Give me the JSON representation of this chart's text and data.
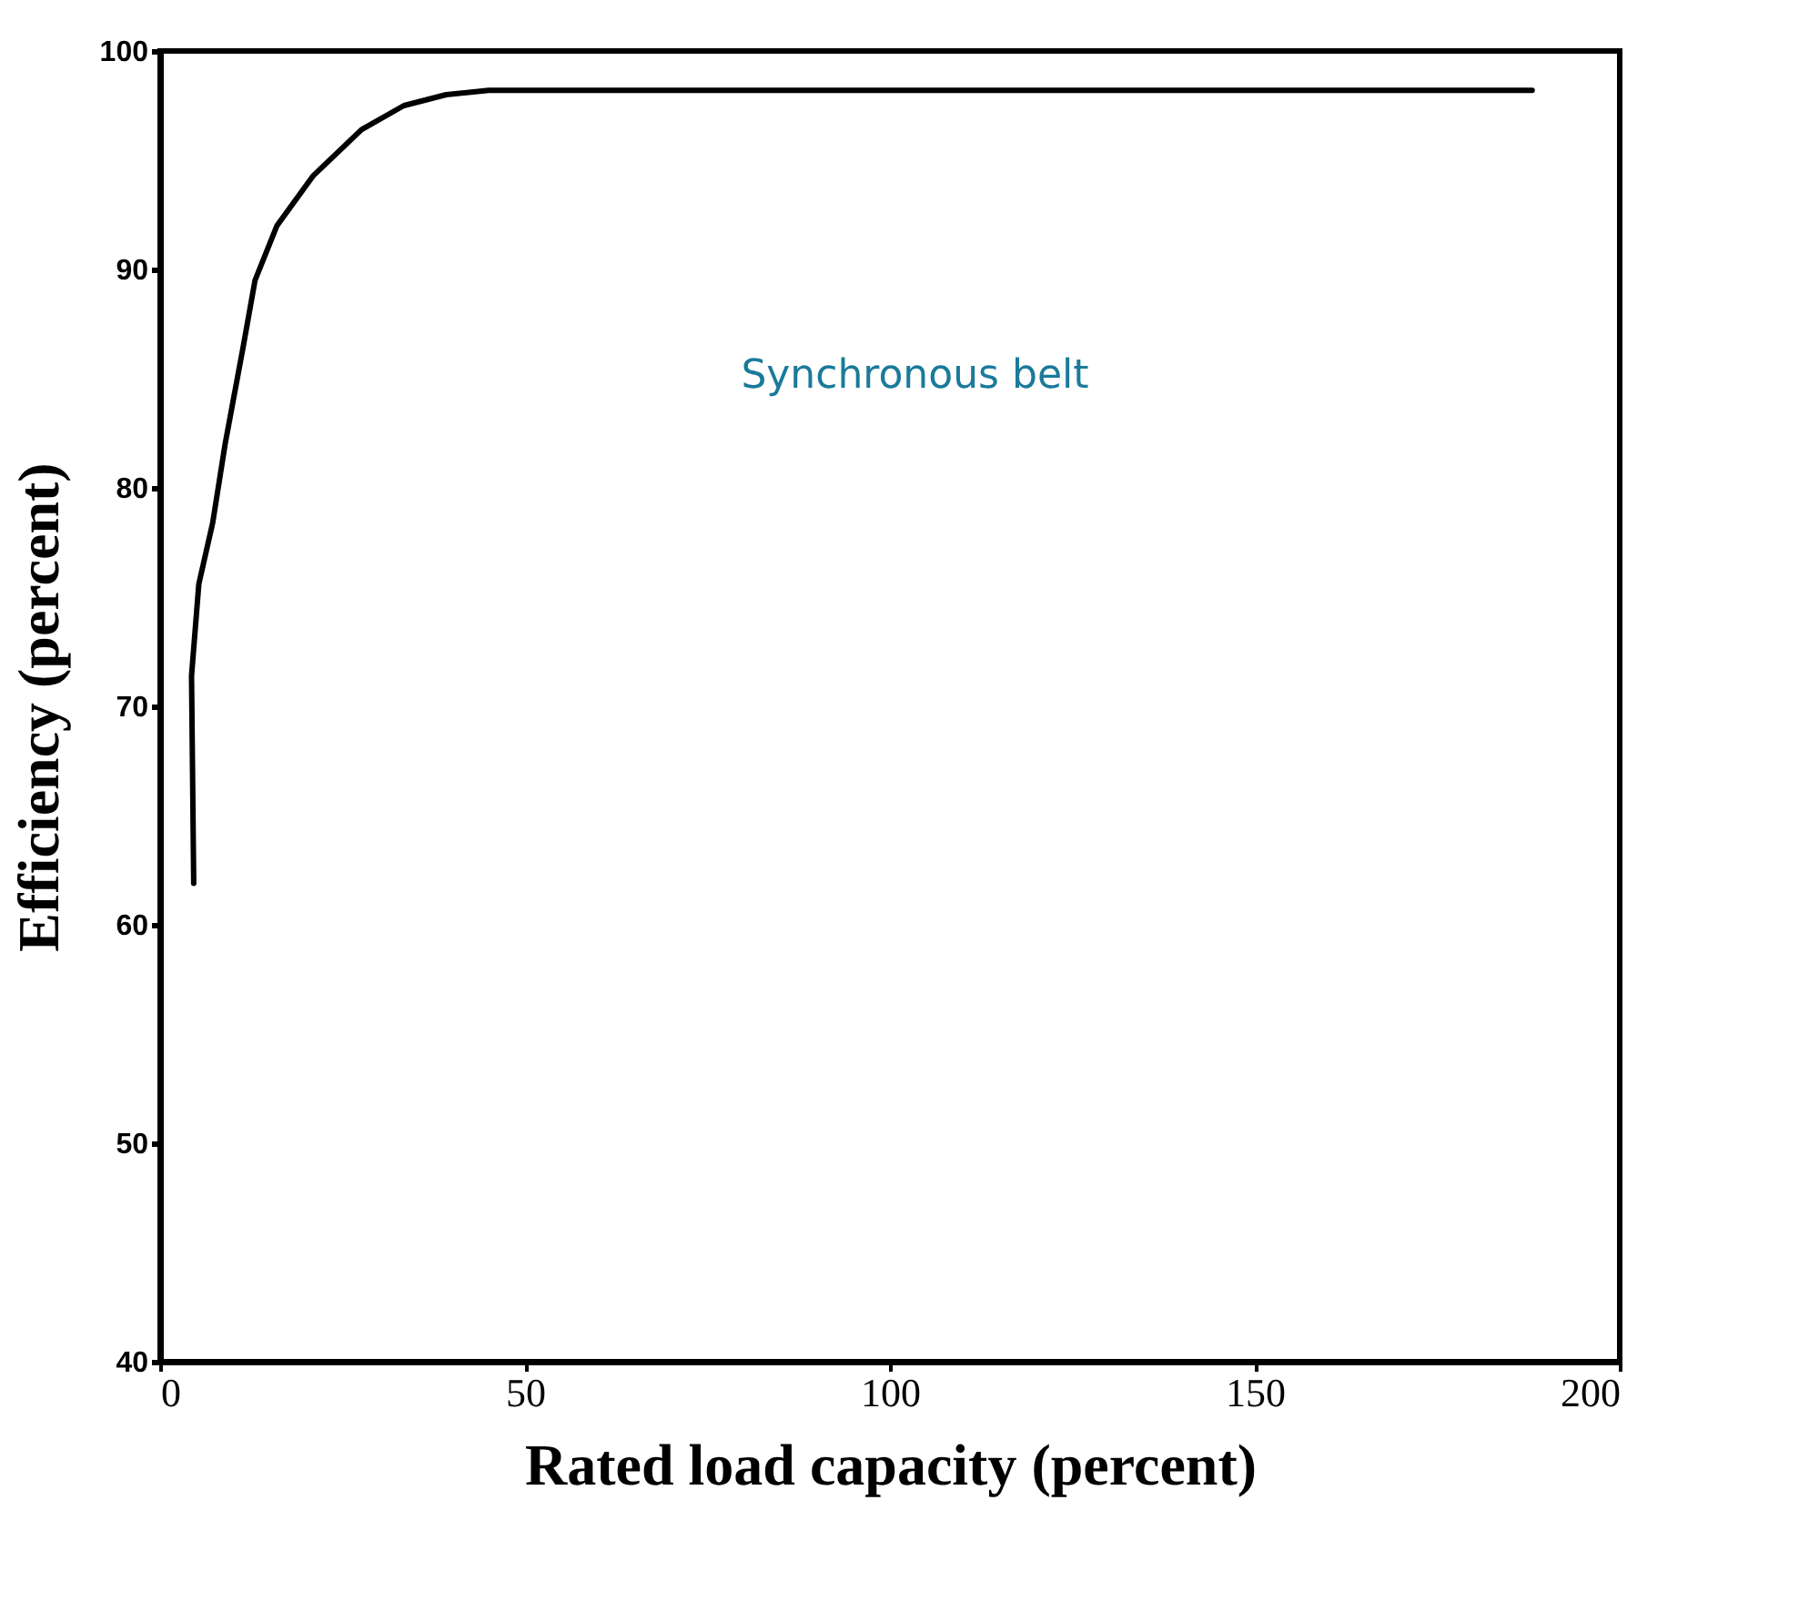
{
  "chart_data": {
    "type": "line",
    "xlabel": "Rated load capacity  (percent)",
    "ylabel": "Efficiency  (percent)",
    "series": [
      {
        "color": "#000000",
        "x": [
          4.6,
          4.3,
          5.3,
          7.2,
          8.9,
          11.4,
          13.0,
          16,
          21,
          27.6,
          33.4,
          39.2,
          45,
          60,
          100,
          150,
          188
        ],
        "values": [
          61.9,
          71.4,
          75.6,
          78.4,
          82.0,
          86.5,
          89.5,
          92.0,
          94.3,
          96.4,
          97.5,
          98.0,
          98.2,
          98.2,
          98.2,
          98.2,
          98.2
        ]
      }
    ],
    "xlim": [
      0,
      200
    ],
    "xticks": [
      0,
      50,
      100,
      150,
      200
    ],
    "ylim": [
      40,
      100
    ],
    "yticks": [
      40,
      50,
      60,
      70,
      80,
      90,
      100
    ],
    "annotations": [
      "Synchronous belt"
    ],
    "grid": false,
    "marker": "none",
    "line_style": "solid"
  }
}
